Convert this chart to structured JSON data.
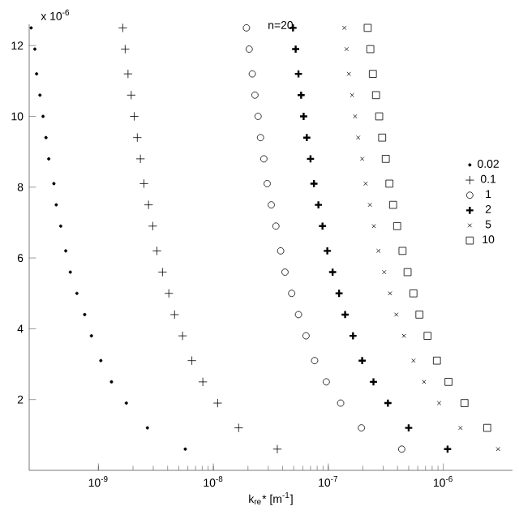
{
  "chart_data": {
    "type": "scatter",
    "xlabel": "k$_{re}$* [m$^{-1}$]",
    "annotations": [
      "x 10$^{-6}$",
      "n=20"
    ],
    "log": "x",
    "legend": "right",
    "grid": false,
    "xlim": [
      2.5e-10,
      4e-06
    ],
    "ylim": [
      0,
      12.6
    ],
    "xticks": [
      {
        "value": 1e-09,
        "label": "10$^{-9}$"
      },
      {
        "value": 1e-08,
        "label": "10$^{-8}$"
      },
      {
        "value": 1e-07,
        "label": "10$^{-7}$"
      },
      {
        "value": 1e-06,
        "label": "10$^{-6}$"
      }
    ],
    "yticks": [
      2,
      4,
      6,
      8,
      10,
      12
    ],
    "series": [
      {
        "name": "0.02",
        "color": "#000000",
        "marker": "point",
        "x": [
          5.7e-09,
          2.67e-09,
          1.75e-09,
          1.3e-09,
          1.05e-09,
          8.7e-10,
          7.6e-10,
          6.5e-10,
          5.7e-10,
          5.2e-10,
          4.7e-10,
          4.3e-10,
          4.1e-10,
          3.7e-10,
          3.5e-10,
          3.3e-10,
          3.1e-10,
          2.9e-10,
          2.8e-10,
          2.6e-10
        ],
        "values": [
          0.6,
          1.2,
          1.9,
          2.5,
          3.1,
          3.8,
          4.4,
          5,
          5.6,
          6.2,
          6.9,
          7.5,
          8.1,
          8.8,
          9.4,
          10,
          10.6,
          11.2,
          11.9,
          12.5
        ]
      },
      {
        "name": "0.1",
        "color": "#000000",
        "marker": "plus",
        "x": [
          3.6e-08,
          1.66e-08,
          1.09e-08,
          8.1e-09,
          6.5e-09,
          5.4e-09,
          4.6e-09,
          4.1e-09,
          3.61e-09,
          3.23e-09,
          2.97e-09,
          2.73e-09,
          2.49e-09,
          2.32e-09,
          2.18e-09,
          2.05e-09,
          1.93e-09,
          1.81e-09,
          1.71e-09,
          1.63e-09
        ],
        "values": [
          0.6,
          1.2,
          1.9,
          2.5,
          3.1,
          3.8,
          4.4,
          5,
          5.6,
          6.2,
          6.9,
          7.5,
          8.1,
          8.8,
          9.4,
          10,
          10.6,
          11.2,
          11.9,
          12.5
        ]
      },
      {
        "name": "1",
        "color": "#000000",
        "marker": "circle",
        "x": [
          4.35e-07,
          1.94e-07,
          1.28e-07,
          9.6e-08,
          7.6e-08,
          6.4e-08,
          5.5e-08,
          4.8e-08,
          4.2e-08,
          3.85e-08,
          3.5e-08,
          3.19e-08,
          2.94e-08,
          2.75e-08,
          2.57e-08,
          2.45e-08,
          2.3e-08,
          2.18e-08,
          2.05e-08,
          1.94e-08
        ],
        "values": [
          0.6,
          1.2,
          1.9,
          2.5,
          3.1,
          3.8,
          4.4,
          5,
          5.6,
          6.2,
          6.9,
          7.5,
          8.1,
          8.8,
          9.4,
          10,
          10.6,
          11.2,
          11.9,
          12.5
        ]
      },
      {
        "name": "2",
        "color": "#000000",
        "marker": "cross",
        "x": [
          1.09e-06,
          5e-07,
          3.3e-07,
          2.47e-07,
          1.97e-07,
          1.64e-07,
          1.4e-07,
          1.24e-07,
          1.09e-07,
          9.8e-08,
          8.9e-08,
          8.2e-08,
          7.5e-08,
          7e-08,
          6.5e-08,
          6.1e-08,
          5.8e-08,
          5.5e-08,
          5.2e-08,
          4.93e-08
        ],
        "values": [
          0.6,
          1.2,
          1.9,
          2.5,
          3.1,
          3.8,
          4.4,
          5,
          5.6,
          6.2,
          6.9,
          7.5,
          8.1,
          8.8,
          9.4,
          10,
          10.6,
          11.2,
          11.9,
          12.5
        ]
      },
      {
        "name": "5",
        "color": "#000000",
        "marker": "x",
        "x": [
          3e-06,
          1.41e-06,
          9.2e-07,
          6.8e-07,
          5.5e-07,
          4.55e-07,
          3.9e-07,
          3.44e-07,
          3.06e-07,
          2.73e-07,
          2.49e-07,
          2.3e-07,
          2.11e-07,
          1.97e-07,
          1.82e-07,
          1.71e-07,
          1.61e-07,
          1.51e-07,
          1.44e-07,
          1.38e-07
        ],
        "values": [
          0.6,
          1.2,
          1.9,
          2.5,
          3.1,
          3.8,
          4.4,
          5,
          5.6,
          6.2,
          6.9,
          7.5,
          8.1,
          8.8,
          9.4,
          10,
          10.6,
          11.2,
          11.9,
          12.5
        ]
      },
      {
        "name": "10",
        "color": "#000000",
        "marker": "square",
        "x": [
          2.41e-06,
          1.53e-06,
          1.11e-06,
          8.8e-07,
          7.3e-07,
          6.2e-07,
          5.5e-07,
          4.89e-07,
          4.42e-07,
          3.97e-07,
          3.66e-07,
          3.4e-07,
          3.16e-07,
          2.94e-07,
          2.77e-07,
          2.6e-07,
          2.44e-07,
          2.32e-07,
          2.2e-07
        ],
        "values": [
          1.2,
          1.9,
          2.5,
          3.1,
          3.8,
          4.4,
          5,
          5.6,
          6.2,
          6.9,
          7.5,
          8.1,
          8.8,
          9.4,
          10,
          10.6,
          11.2,
          11.9,
          12.5
        ]
      }
    ]
  }
}
